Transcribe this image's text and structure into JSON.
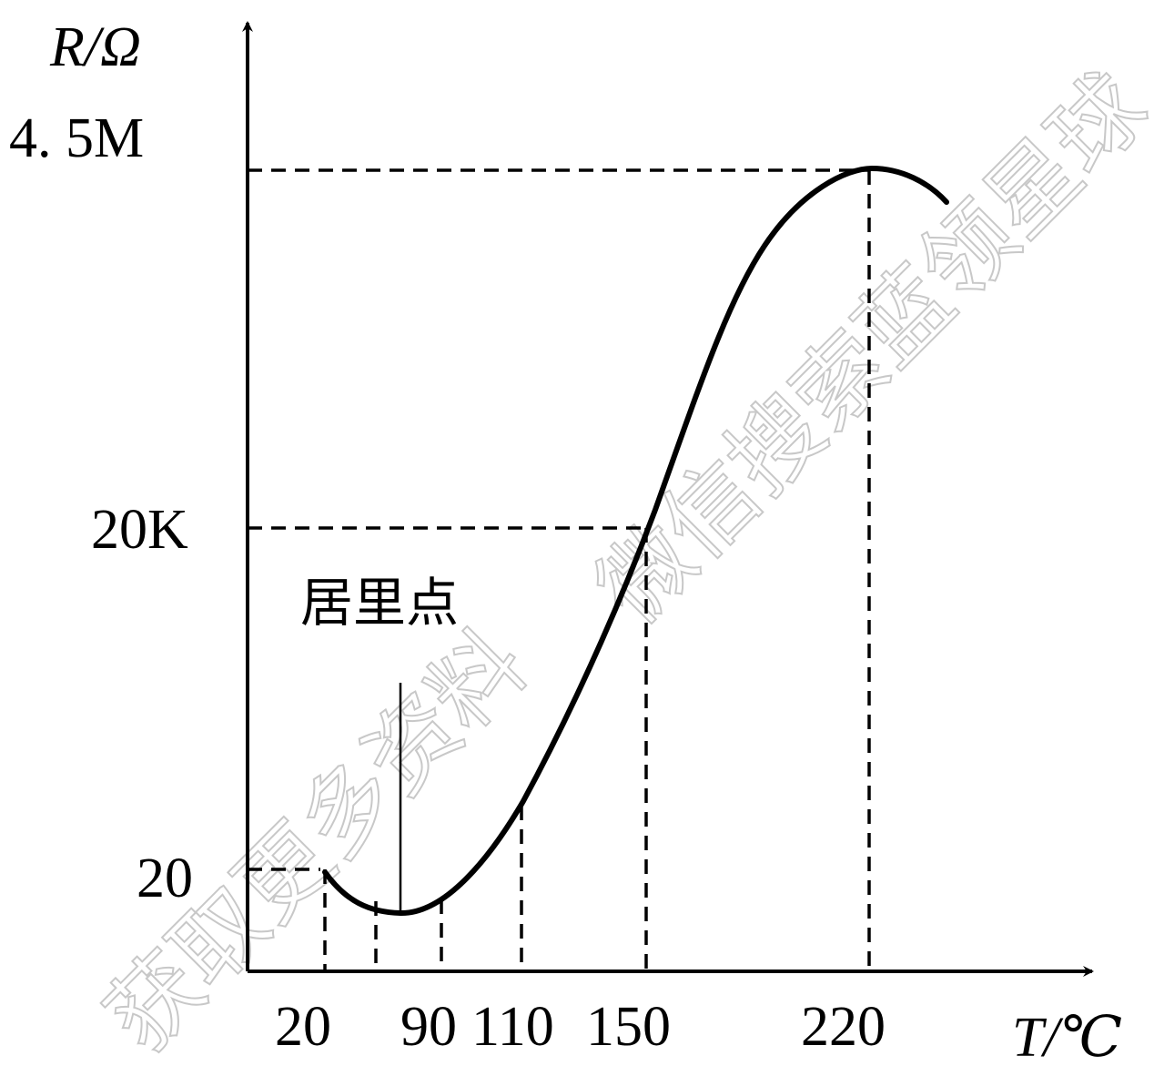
{
  "chart_data": {
    "type": "line",
    "title": "",
    "xlabel": "T/℃",
    "ylabel": "R/Ω",
    "x_ticks": [
      "20",
      "90",
      "110",
      "150",
      "220"
    ],
    "y_ticks": [
      "20",
      "20K",
      "4. 5M"
    ],
    "annotation": "居里点",
    "curie_point_x": 55,
    "series": [
      {
        "points": [
          [
            20,
            20
          ],
          [
            28,
            17
          ],
          [
            40,
            15
          ],
          [
            55,
            14
          ],
          [
            70,
            15
          ],
          [
            90,
            22
          ],
          [
            110,
            80
          ],
          [
            130,
            1000
          ],
          [
            150,
            20000
          ],
          [
            170,
            300000
          ],
          [
            200,
            3000000
          ],
          [
            220,
            4500000
          ],
          [
            245,
            2500000
          ]
        ]
      }
    ],
    "dashed_guides": [
      {
        "x": 20,
        "y": 20
      },
      {
        "x": 35
      },
      {
        "x": 90
      },
      {
        "x": 110
      },
      {
        "x": 150,
        "y": 20000
      },
      {
        "x": 220,
        "y": 4500000
      }
    ],
    "watermark": [
      "获取更多资料",
      "微信搜索蓝领星球"
    ]
  }
}
